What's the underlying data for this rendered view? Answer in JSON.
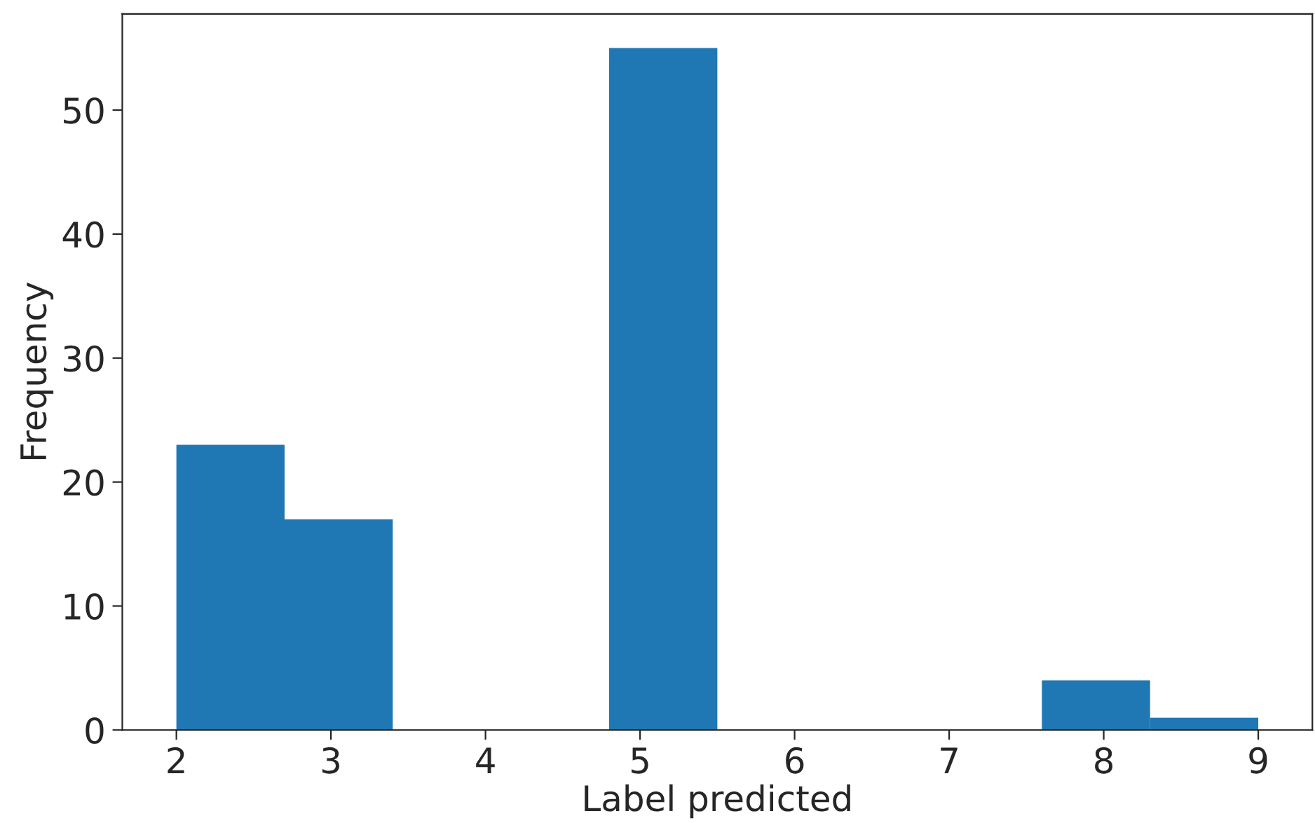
{
  "chart_data": {
    "type": "histogram",
    "xlabel": "Label predicted",
    "ylabel": "Frequency",
    "bins": [
      2,
      2.7,
      3.4,
      4.1,
      4.8,
      5.5,
      6.2,
      6.9,
      7.6,
      8.3,
      9
    ],
    "values": [
      23,
      17,
      0,
      0,
      55,
      0,
      0,
      0,
      4,
      1
    ],
    "color": "#1f77b4",
    "xlim": [
      1.65,
      9.35
    ],
    "xticks": [
      2,
      3,
      4,
      5,
      6,
      7,
      8,
      9
    ],
    "ylim": [
      0,
      57.75
    ],
    "yticks": [
      0,
      10,
      20,
      30,
      40,
      50
    ],
    "grid": false,
    "legend": false
  }
}
